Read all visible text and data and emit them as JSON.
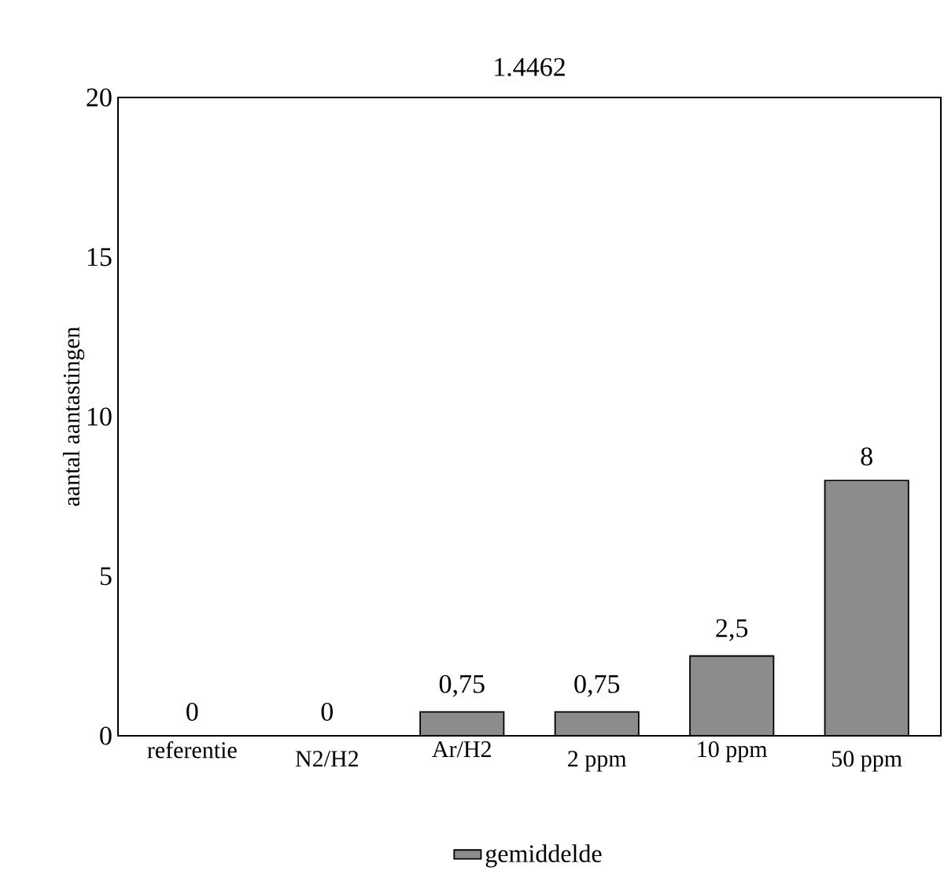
{
  "chart_data": {
    "type": "bar",
    "title": "1.4462",
    "ylabel": "aantal aantastingen",
    "categories": [
      "referentie",
      "N2/H2",
      "Ar/H2",
      "2 ppm",
      "10 ppm",
      "50 ppm"
    ],
    "series": [
      {
        "name": "gemiddelde",
        "color": "#8c8c8c",
        "values": [
          0,
          0,
          0.75,
          0.75,
          2.5,
          8
        ],
        "value_labels": [
          "0",
          "0",
          "0,75",
          "0,75",
          "2,5",
          "8"
        ]
      }
    ],
    "ylim": [
      0,
      20
    ],
    "yticks": [
      0,
      5,
      10,
      15,
      20
    ],
    "legend": "bottom",
    "grid": false
  }
}
